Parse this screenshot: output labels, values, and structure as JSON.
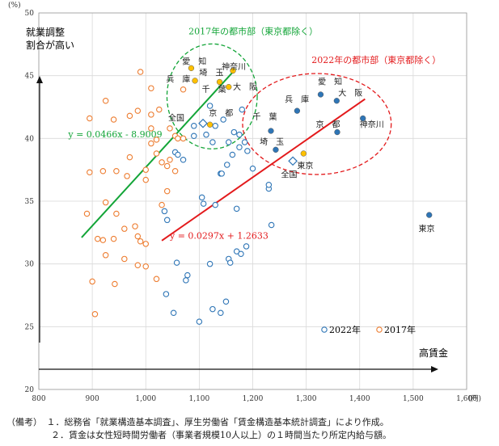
{
  "chart_data": {
    "type": "scatter",
    "unit_y": "(%)",
    "unit_x": "(円)",
    "xlim": [
      800,
      1600
    ],
    "ylim": [
      20,
      50
    ],
    "xticks": [
      800,
      900,
      1000,
      1100,
      1200,
      1300,
      1400,
      1500,
      1600
    ],
    "xtick_labels": [
      "800",
      "900",
      "1,000",
      "1,100",
      "1,200",
      "1,300",
      "1,400",
      "1,500",
      "1,600"
    ],
    "yticks": [
      20,
      25,
      30,
      35,
      40,
      45,
      50
    ],
    "grid": true,
    "legend_position": "bottom-right",
    "y_arrow_label_line1": "就業調整",
    "y_arrow_label_line2": "割合が高い",
    "x_arrow_label": "高賃金",
    "series": [
      {
        "name": "2022年",
        "color": "#2e75b6",
        "marker": "open-circle",
        "points": [
          [
            1035,
            34.2
          ],
          [
            1040,
            33.5
          ],
          [
            1055,
            38.9
          ],
          [
            1060,
            38.7
          ],
          [
            1070,
            38.3
          ],
          [
            1090,
            41.0
          ],
          [
            1090,
            40.2
          ],
          [
            1105,
            35.3
          ],
          [
            1108,
            34.8
          ],
          [
            1113,
            40.3
          ],
          [
            1125,
            39.7
          ],
          [
            1130,
            41.0
          ],
          [
            1145,
            41.5
          ],
          [
            1155,
            39.7
          ],
          [
            1162,
            38.7
          ],
          [
            1175,
            39.3
          ],
          [
            1185,
            39.7
          ],
          [
            1190,
            39.0
          ],
          [
            1200,
            37.6
          ],
          [
            1230,
            36.0
          ],
          [
            1230,
            36.3
          ],
          [
            1235,
            33.1
          ],
          [
            1140,
            37.2
          ],
          [
            1142,
            37.2
          ],
          [
            1152,
            37.9
          ],
          [
            1165,
            40.5
          ],
          [
            1170,
            34.4
          ],
          [
            1130,
            34.7
          ],
          [
            1058,
            30.1
          ],
          [
            1078,
            29.1
          ],
          [
            1075,
            28.7
          ],
          [
            1120,
            30.0
          ],
          [
            1155,
            30.4
          ],
          [
            1158,
            30.1
          ],
          [
            1170,
            31.0
          ],
          [
            1178,
            30.8
          ],
          [
            1188,
            31.4
          ],
          [
            1038,
            27.6
          ],
          [
            1052,
            26.1
          ],
          [
            1100,
            25.4
          ],
          [
            1125,
            26.4
          ],
          [
            1140,
            26.1
          ],
          [
            1150,
            27.0
          ],
          [
            1120,
            42.6
          ],
          [
            1180,
            42.3
          ],
          [
            1175,
            40.3
          ]
        ]
      },
      {
        "name": "2017年",
        "color": "#ed7d31",
        "marker": "open-circle",
        "points": [
          [
            890,
            34.0
          ],
          [
            895,
            37.3
          ],
          [
            920,
            37.4
          ],
          [
            945,
            37.4
          ],
          [
            925,
            34.9
          ],
          [
            945,
            34.0
          ],
          [
            960,
            32.8
          ],
          [
            910,
            32.0
          ],
          [
            925,
            30.7
          ],
          [
            920,
            31.9
          ],
          [
            940,
            32.0
          ],
          [
            960,
            30.4
          ],
          [
            980,
            33.0
          ],
          [
            985,
            32.2
          ],
          [
            990,
            31.8
          ],
          [
            1000,
            31.6
          ],
          [
            1000,
            29.8
          ],
          [
            1020,
            28.8
          ],
          [
            900,
            28.6
          ],
          [
            942,
            28.4
          ],
          [
            985,
            29.9
          ],
          [
            905,
            26.0
          ],
          [
            895,
            41.6
          ],
          [
            925,
            43.0
          ],
          [
            940,
            41.5
          ],
          [
            970,
            41.8
          ],
          [
            985,
            42.2
          ],
          [
            1000,
            37.5
          ],
          [
            1000,
            36.7
          ],
          [
            1010,
            39.6
          ],
          [
            1010,
            41.9
          ],
          [
            1020,
            38.8
          ],
          [
            1020,
            39.9
          ],
          [
            1025,
            42.3
          ],
          [
            1030,
            38.1
          ],
          [
            1040,
            37.8
          ],
          [
            1045,
            40.8
          ],
          [
            1045,
            38.3
          ],
          [
            1055,
            40.2
          ],
          [
            1060,
            40.0
          ],
          [
            1070,
            43.9
          ],
          [
            1010,
            40.8
          ],
          [
            990,
            45.3
          ],
          [
            1010,
            44.0
          ],
          [
            1030,
            34.7
          ],
          [
            1040,
            35.8
          ],
          [
            1055,
            37.4
          ],
          [
            965,
            37.0
          ],
          [
            970,
            38.5
          ],
          [
            1070,
            40.0
          ]
        ]
      },
      {
        "name": "2022年 都市部",
        "color": "#2e75b6",
        "marker": "filled-circle",
        "points": [
          [
            1234,
            40.6
          ],
          [
            1283,
            42.2
          ],
          [
            1327,
            43.5
          ],
          [
            1357,
            43.0
          ],
          [
            1358,
            40.5
          ],
          [
            1406,
            41.6
          ],
          [
            1530,
            33.9
          ],
          [
            1243,
            39.1
          ]
        ]
      },
      {
        "name": "2017年 都市部",
        "color": "#ffc000",
        "marker": "filled-circle",
        "points": [
          [
            1085,
            45.6
          ],
          [
            1092,
            44.6
          ],
          [
            1138,
            44.5
          ],
          [
            1155,
            44.1
          ],
          [
            1163,
            45.4
          ],
          [
            1120,
            41.1
          ],
          [
            1295,
            38.8
          ]
        ]
      },
      {
        "name": "全国",
        "color": "#2e75b6",
        "marker": "open-diamond",
        "points": [
          [
            1275,
            38.2
          ],
          [
            1107,
            41.2
          ]
        ]
      }
    ],
    "trendlines": [
      {
        "label": "y = 0.0466x - 8.9009",
        "color": "#13a538",
        "slope": 0.0466,
        "intercept": -8.9009,
        "x_range": [
          880,
          1168
        ],
        "label_x": 855,
        "label_y": 40.1
      },
      {
        "label": "y = 0.0297x + 1.2633",
        "color": "#e31a1c",
        "slope": 0.0297,
        "intercept": 1.2633,
        "x_range": [
          1030,
          1410
        ],
        "label_x": 1045,
        "label_y": 32.0
      }
    ],
    "annotations": [
      {
        "text": "2017年の都市部（東京都除く）",
        "color": "#13a538",
        "x": 1080,
        "y": 48.3
      },
      {
        "text": "2022年の都市部（東京都除く）",
        "color": "#e31a1c",
        "x": 1310,
        "y": 46.0
      },
      {
        "text": "愛　知",
        "color": "#222",
        "x": 1068,
        "y": 45.9
      },
      {
        "text": "神奈川",
        "color": "#222",
        "x": 1142,
        "y": 45.5
      },
      {
        "text": "兵　庫",
        "color": "#222",
        "x": 1038,
        "y": 44.5
      },
      {
        "text": "埼　玉",
        "color": "#222",
        "x": 1100,
        "y": 45.0
      },
      {
        "text": "大　阪",
        "color": "#222",
        "x": 1163,
        "y": 43.9
      },
      {
        "text": "千　葉",
        "color": "#222",
        "x": 1105,
        "y": 43.7
      },
      {
        "text": "京　都",
        "color": "#222",
        "x": 1118,
        "y": 41.8
      },
      {
        "text": "全国",
        "color": "#222",
        "x": 1042,
        "y": 41.4
      },
      {
        "text": "兵　庫",
        "color": "#222",
        "x": 1260,
        "y": 42.9
      },
      {
        "text": "愛　知",
        "color": "#222",
        "x": 1322,
        "y": 44.3
      },
      {
        "text": "大　阪",
        "color": "#222",
        "x": 1360,
        "y": 43.4
      },
      {
        "text": "千　葉",
        "color": "#222",
        "x": 1200,
        "y": 41.5
      },
      {
        "text": "京　都",
        "color": "#222",
        "x": 1318,
        "y": 40.9
      },
      {
        "text": "埼　玉",
        "color": "#222",
        "x": 1213,
        "y": 39.5
      },
      {
        "text": "神奈川",
        "color": "#222",
        "x": 1400,
        "y": 40.9
      },
      {
        "text": "東京",
        "color": "#222",
        "x": 1283,
        "y": 37.6
      },
      {
        "text": "全国",
        "color": "#222",
        "x": 1253,
        "y": 36.9
      },
      {
        "text": "東京",
        "color": "#222",
        "x": 1510,
        "y": 32.6
      }
    ]
  },
  "notes": [
    "（備考）　１．総務省「就業構造基本調査」、厚生労働省「賃金構造基本統計調査」により作成。",
    "　　　　　２．賃金は女性短時間労働者（事業者規模10人以上）の１時間当たり所定内給与額。"
  ]
}
